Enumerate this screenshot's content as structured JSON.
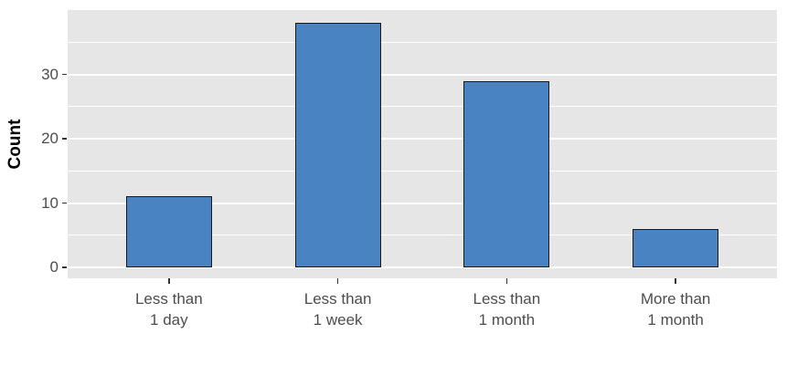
{
  "chart_data": {
    "type": "bar",
    "title": "",
    "xlabel": "",
    "ylabel": "Count",
    "categories": [
      "Less than\n1 day",
      "Less than\n1 week",
      "Less than\n1 month",
      "More than\n1 month"
    ],
    "values": [
      11,
      38,
      29,
      6
    ],
    "ylim": [
      0,
      40
    ],
    "yticks_major": [
      0,
      10,
      20,
      30
    ],
    "yticks_minor": [
      5,
      15,
      25,
      35
    ],
    "grid": true,
    "legend": false,
    "colors": {
      "bar_fill": "#4A83C2",
      "bar_stroke": "#1A1A1A",
      "panel_bg": "#E6E6E6",
      "grid": "#FFFFFF",
      "tick_text": "#4D4D4D",
      "axis_title_text": "#000000",
      "tick_mark": "#333333"
    }
  }
}
